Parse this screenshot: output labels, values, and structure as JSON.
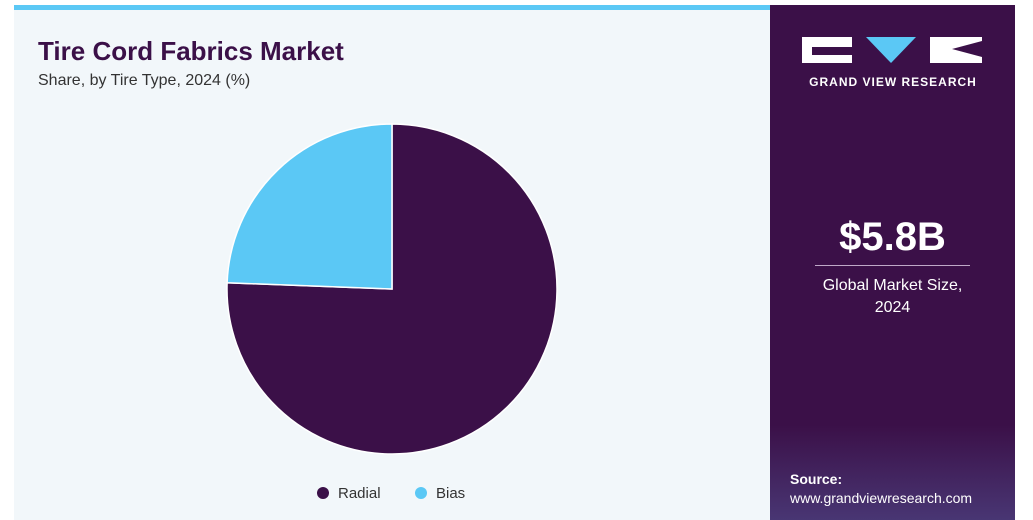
{
  "chart_data": {
    "type": "pie",
    "title": "Tire Cord Fabrics Market",
    "subtitle": "Share, by Tire Type, 2024 (%)",
    "categories": [
      "Radial",
      "Bias"
    ],
    "values": [
      75.6,
      24.4
    ],
    "colors": [
      "#3b1048",
      "#5bc8f5"
    ]
  },
  "side_panel": {
    "brand": "GRAND VIEW RESEARCH",
    "market_size": "$5.8B",
    "market_size_label": "Global Market Size, 2024",
    "source_label": "Source:",
    "source_url": "www.grandviewresearch.com"
  }
}
